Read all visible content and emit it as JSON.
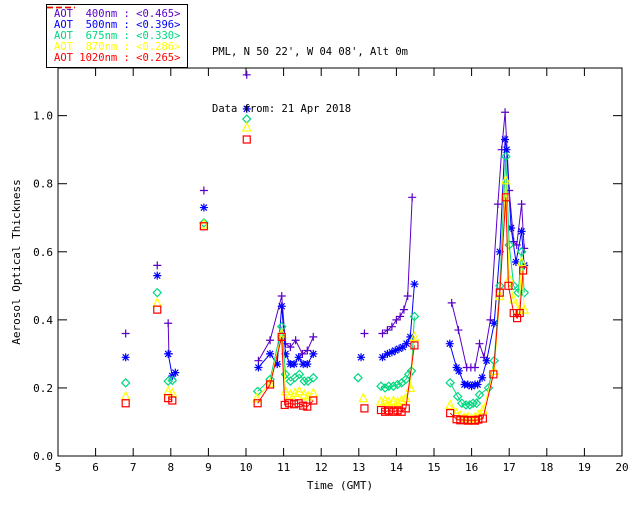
{
  "header": {
    "line1": "PML, N 50 22', W 04 08', Alt 0m",
    "line2": "Data from: 21 Apr 2018"
  },
  "legend": {
    "items": [
      {
        "label": "AOT  400nm : <0.465>",
        "color": "#5a00c8"
      },
      {
        "label": "AOT  500nm : <0.396>",
        "color": "#0000ff"
      },
      {
        "label": "AOT  675nm : <0.330>",
        "color": "#00d87f"
      },
      {
        "label": "AOT  870nm : <0.286>",
        "color": "#ffff00"
      },
      {
        "label": "AOT 1020nm : <0.265>",
        "color": "#ff0000"
      }
    ]
  },
  "chart_data": {
    "type": "scatter",
    "title": "",
    "xlabel": "Time (GMT)",
    "ylabel": "Aerosol Optical Thickness",
    "xlim": [
      5,
      20
    ],
    "ylim": [
      0,
      1.14
    ],
    "xticks": [
      5,
      6,
      7,
      8,
      9,
      10,
      11,
      12,
      13,
      14,
      15,
      16,
      17,
      18,
      19,
      20
    ],
    "yticks": [
      0.0,
      0.2,
      0.4,
      0.6,
      0.8,
      1.0
    ],
    "grid": false,
    "legend_position": "top-left",
    "axis_color": "#000000",
    "series": [
      {
        "name": "AOT 400nm",
        "daily_mean": "<0.465>",
        "color": "#5a00c8",
        "marker": "plus",
        "points": [
          [
            6.8,
            0.36
          ],
          null,
          [
            7.64,
            0.56
          ],
          null,
          [
            7.93,
            0.39
          ],
          [
            7.95,
            0.3
          ],
          null,
          [
            8.88,
            0.78
          ],
          null,
          [
            10.02,
            1.12
          ],
          null,
          [
            10.33,
            0.28
          ],
          [
            10.64,
            0.34
          ],
          [
            10.95,
            0.47
          ],
          [
            11.05,
            0.33
          ],
          [
            11.18,
            0.32
          ],
          [
            11.32,
            0.34
          ],
          [
            11.5,
            0.3
          ],
          [
            11.63,
            0.31
          ],
          [
            11.79,
            0.35
          ],
          null,
          [
            13.15,
            0.36
          ],
          null,
          [
            13.63,
            0.36
          ],
          [
            13.76,
            0.37
          ],
          [
            13.88,
            0.38
          ],
          [
            14.0,
            0.4
          ],
          [
            14.1,
            0.41
          ],
          [
            14.2,
            0.43
          ],
          [
            14.3,
            0.47
          ],
          [
            14.42,
            0.76
          ],
          null,
          [
            15.47,
            0.45
          ],
          [
            15.65,
            0.37
          ],
          [
            15.87,
            0.26
          ],
          [
            15.98,
            0.26
          ],
          [
            16.09,
            0.26
          ],
          [
            16.21,
            0.33
          ],
          [
            16.33,
            0.29
          ],
          [
            16.5,
            0.4
          ],
          [
            16.7,
            0.74
          ],
          [
            16.8,
            0.9
          ],
          [
            16.89,
            1.01
          ],
          [
            17.0,
            0.78
          ],
          [
            17.12,
            0.63
          ],
          [
            17.2,
            0.62
          ],
          [
            17.33,
            0.74
          ],
          [
            17.4,
            0.61
          ]
        ]
      },
      {
        "name": "AOT 500nm",
        "daily_mean": "<0.396>",
        "color": "#0000ff",
        "marker": "asterisk",
        "points": [
          [
            6.8,
            0.29
          ],
          null,
          [
            7.64,
            0.53
          ],
          null,
          [
            7.93,
            0.3
          ],
          [
            8.04,
            0.235
          ],
          [
            8.12,
            0.245
          ],
          null,
          [
            8.88,
            0.73
          ],
          null,
          [
            10.02,
            1.02
          ],
          null,
          [
            10.33,
            0.26
          ],
          [
            10.64,
            0.3
          ],
          [
            10.83,
            0.27
          ],
          [
            10.95,
            0.44
          ],
          [
            11.05,
            0.3
          ],
          [
            11.18,
            0.27
          ],
          [
            11.28,
            0.27
          ],
          [
            11.4,
            0.29
          ],
          [
            11.52,
            0.27
          ],
          [
            11.63,
            0.27
          ],
          [
            11.79,
            0.3
          ],
          null,
          [
            13.06,
            0.29
          ],
          null,
          [
            13.63,
            0.29
          ],
          [
            13.76,
            0.3
          ],
          [
            13.88,
            0.305
          ],
          [
            13.97,
            0.31
          ],
          [
            14.07,
            0.315
          ],
          [
            14.17,
            0.32
          ],
          [
            14.27,
            0.33
          ],
          [
            14.37,
            0.35
          ],
          [
            14.48,
            0.505
          ],
          null,
          [
            15.42,
            0.33
          ],
          [
            15.6,
            0.26
          ],
          [
            15.66,
            0.25
          ],
          [
            15.81,
            0.21
          ],
          [
            15.9,
            0.21
          ],
          [
            16.0,
            0.205
          ],
          [
            16.09,
            0.21
          ],
          [
            16.16,
            0.21
          ],
          [
            16.28,
            0.23
          ],
          [
            16.4,
            0.28
          ],
          [
            16.6,
            0.39
          ],
          [
            16.75,
            0.6
          ],
          [
            16.89,
            0.93
          ],
          [
            16.93,
            0.9
          ],
          [
            17.05,
            0.67
          ],
          [
            17.18,
            0.57
          ],
          [
            17.33,
            0.66
          ],
          [
            17.4,
            0.56
          ]
        ]
      },
      {
        "name": "AOT 675nm",
        "daily_mean": "<0.330>",
        "color": "#00d87f",
        "marker": "diamond",
        "points": [
          [
            6.8,
            0.215
          ],
          null,
          [
            7.64,
            0.48
          ],
          null,
          [
            7.93,
            0.22
          ],
          [
            8.04,
            0.222
          ],
          null,
          [
            8.88,
            0.685
          ],
          null,
          [
            10.02,
            0.99
          ],
          null,
          [
            10.31,
            0.19
          ],
          [
            10.64,
            0.225
          ],
          [
            10.95,
            0.38
          ],
          [
            11.05,
            0.24
          ],
          [
            11.18,
            0.22
          ],
          [
            11.3,
            0.23
          ],
          [
            11.42,
            0.24
          ],
          [
            11.55,
            0.22
          ],
          [
            11.65,
            0.22
          ],
          [
            11.79,
            0.23
          ],
          null,
          [
            12.98,
            0.23
          ],
          null,
          [
            13.59,
            0.205
          ],
          [
            13.7,
            0.2
          ],
          [
            13.8,
            0.205
          ],
          [
            13.92,
            0.205
          ],
          [
            14.03,
            0.21
          ],
          [
            14.14,
            0.215
          ],
          [
            14.25,
            0.225
          ],
          [
            14.33,
            0.24
          ],
          [
            14.4,
            0.25
          ],
          [
            14.48,
            0.41
          ],
          null,
          [
            15.43,
            0.215
          ],
          [
            15.63,
            0.175
          ],
          [
            15.74,
            0.155
          ],
          [
            15.85,
            0.15
          ],
          [
            15.95,
            0.15
          ],
          [
            16.04,
            0.155
          ],
          [
            16.13,
            0.155
          ],
          [
            16.21,
            0.18
          ],
          [
            16.45,
            0.2
          ],
          [
            16.6,
            0.28
          ],
          [
            16.75,
            0.5
          ],
          [
            16.91,
            0.88
          ],
          [
            17.0,
            0.62
          ],
          [
            17.12,
            0.5
          ],
          [
            17.24,
            0.48
          ],
          [
            17.33,
            0.6
          ],
          [
            17.4,
            0.48
          ]
        ]
      },
      {
        "name": "AOT 870nm",
        "daily_mean": "<0.286>",
        "color": "#ffff00",
        "marker": "triangle",
        "points": [
          [
            6.8,
            0.175
          ],
          null,
          [
            7.64,
            0.45
          ],
          null,
          [
            7.93,
            0.19
          ],
          [
            8.04,
            0.185
          ],
          null,
          [
            8.88,
            0.68
          ],
          null,
          [
            10.02,
            0.965
          ],
          null,
          [
            10.29,
            0.17
          ],
          [
            10.64,
            0.215
          ],
          [
            10.95,
            0.36
          ],
          [
            11.05,
            0.19
          ],
          [
            11.18,
            0.18
          ],
          [
            11.3,
            0.185
          ],
          [
            11.42,
            0.19
          ],
          [
            11.55,
            0.18
          ],
          [
            11.65,
            0.175
          ],
          [
            11.79,
            0.185
          ],
          null,
          [
            13.12,
            0.17
          ],
          null,
          [
            13.59,
            0.16
          ],
          [
            13.7,
            0.163
          ],
          [
            13.8,
            0.158
          ],
          [
            13.92,
            0.162
          ],
          [
            14.03,
            0.158
          ],
          [
            14.14,
            0.163
          ],
          [
            14.25,
            0.17
          ],
          [
            14.37,
            0.2
          ],
          [
            14.48,
            0.35
          ],
          null,
          [
            15.43,
            0.15
          ],
          [
            15.6,
            0.125
          ],
          [
            15.7,
            0.118
          ],
          [
            15.8,
            0.112
          ],
          [
            15.9,
            0.115
          ],
          [
            16.0,
            0.11
          ],
          [
            16.09,
            0.113
          ],
          [
            16.18,
            0.12
          ],
          [
            16.3,
            0.135
          ],
          [
            16.6,
            0.25
          ],
          [
            16.75,
            0.47
          ],
          [
            16.91,
            0.81
          ],
          [
            17.0,
            0.52
          ],
          [
            17.12,
            0.46
          ],
          [
            17.26,
            0.43
          ],
          [
            17.33,
            0.57
          ],
          [
            17.4,
            0.43
          ]
        ]
      },
      {
        "name": "AOT 1020nm",
        "daily_mean": "<0.265>",
        "color": "#ff0000",
        "marker": "square",
        "points": [
          [
            6.8,
            0.155
          ],
          null,
          [
            7.64,
            0.43
          ],
          null,
          [
            7.93,
            0.17
          ],
          [
            8.04,
            0.163
          ],
          null,
          [
            8.88,
            0.675
          ],
          null,
          [
            10.02,
            0.93
          ],
          null,
          [
            10.31,
            0.155
          ],
          [
            10.64,
            0.21
          ],
          [
            10.95,
            0.35
          ],
          [
            11.03,
            0.15
          ],
          [
            11.15,
            0.155
          ],
          [
            11.28,
            0.152
          ],
          [
            11.4,
            0.155
          ],
          [
            11.52,
            0.148
          ],
          [
            11.63,
            0.145
          ],
          [
            11.79,
            0.163
          ],
          null,
          [
            13.15,
            0.14
          ],
          null,
          [
            13.59,
            0.135
          ],
          [
            13.7,
            0.13
          ],
          [
            13.8,
            0.134
          ],
          [
            13.92,
            0.13
          ],
          [
            14.03,
            0.134
          ],
          [
            14.14,
            0.13
          ],
          [
            14.25,
            0.14
          ],
          [
            14.48,
            0.325
          ],
          null,
          [
            15.43,
            0.126
          ],
          [
            15.6,
            0.108
          ],
          [
            15.7,
            0.105
          ],
          [
            15.8,
            0.107
          ],
          [
            15.9,
            0.104
          ],
          [
            16.0,
            0.106
          ],
          [
            16.09,
            0.104
          ],
          [
            16.18,
            0.107
          ],
          [
            16.3,
            0.11
          ],
          [
            16.58,
            0.24
          ],
          [
            16.75,
            0.48
          ],
          [
            16.91,
            0.76
          ],
          [
            16.98,
            0.5
          ],
          [
            17.12,
            0.42
          ],
          [
            17.21,
            0.405
          ],
          [
            17.28,
            0.42
          ],
          [
            17.37,
            0.545
          ]
        ]
      }
    ]
  }
}
